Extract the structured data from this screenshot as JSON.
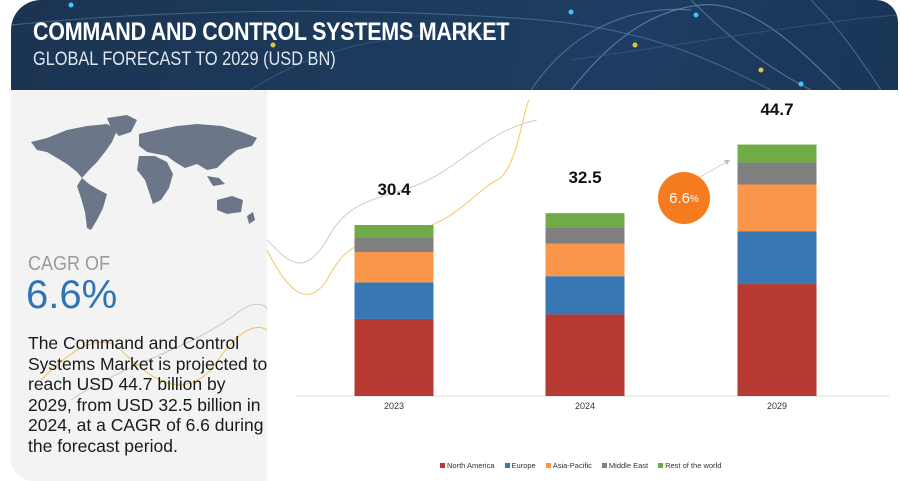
{
  "header": {
    "title": "COMMAND AND CONTROL SYSTEMS MARKET",
    "subtitle": "GLOBAL FORECAST TO 2029 (USD BN)"
  },
  "summary": {
    "cagr_label": "CAGR OF",
    "cagr_value": "6.6%",
    "description": "The Command and Control Systems Market is projected to reach USD 44.7 billion by 2029, from USD 32.5 billion in 2024, at a CAGR of 6.6 during the forecast period."
  },
  "cagr_bubble": {
    "value": "6.6",
    "unit": "%",
    "color": "#f47c1f"
  },
  "chart_data": {
    "type": "bar",
    "stacked": true,
    "title": "Command and Control Systems Market, Global Forecast to 2029",
    "xlabel": "",
    "ylabel": "USD BN",
    "categories": [
      "2023",
      "2024",
      "2029"
    ],
    "totals": [
      "30.4",
      "32.5",
      "44.7"
    ],
    "ylim": [
      0,
      48
    ],
    "grid": false,
    "legend_position": "bottom",
    "series": [
      {
        "name": "North America",
        "color": "#b63a32",
        "values": [
          13.7,
          14.5,
          19.9
        ]
      },
      {
        "name": "Europe",
        "color": "#3877b4",
        "values": [
          6.5,
          6.8,
          9.4
        ]
      },
      {
        "name": "Asia-Pacific",
        "color": "#f9964a",
        "values": [
          5.4,
          5.8,
          8.3
        ]
      },
      {
        "name": "Middle East",
        "color": "#7f7f7f",
        "values": [
          2.6,
          2.9,
          3.9
        ]
      },
      {
        "name": "Rest of the world",
        "color": "#6fac47",
        "values": [
          2.2,
          2.5,
          3.2
        ]
      }
    ]
  }
}
